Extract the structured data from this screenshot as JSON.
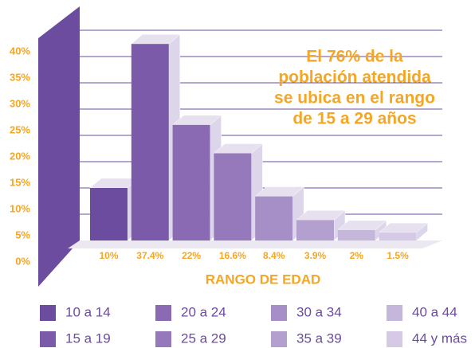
{
  "chart_data": {
    "type": "bar3d",
    "annotation": [
      "El 76% de la",
      "población atendida",
      "se ubica en el rango",
      "de 15 a 29 años"
    ],
    "x_label": "RANGO DE EDAD",
    "categories": [
      "10 a 14",
      "15 a 19",
      "20 a 24",
      "25 a 29",
      "30 a 34",
      "35 a 39",
      "40 a 44",
      "44 y más"
    ],
    "values": [
      10,
      37.4,
      22,
      16.6,
      8.4,
      3.9,
      2,
      1.5
    ],
    "value_labels": [
      "10%",
      "37.4%",
      "22%",
      "16.6%",
      "8.4%",
      "3.9%",
      "2%",
      "1.5%"
    ],
    "colors": [
      "#6b4c9f",
      "#7a5aa9",
      "#8a6bb3",
      "#9679bb",
      "#a68ec6",
      "#b4a0cf",
      "#c5b6dc",
      "#d5c9e6"
    ],
    "ylim": [
      0,
      40
    ],
    "yticks": [
      {
        "value": 0,
        "label": "0%"
      },
      {
        "value": 5,
        "label": "5%"
      },
      {
        "value": 10,
        "label": "10%"
      },
      {
        "value": 15,
        "label": "15%"
      },
      {
        "value": 20,
        "label": "20%"
      },
      {
        "value": 25,
        "label": "25%"
      },
      {
        "value": 30,
        "label": "30%"
      },
      {
        "value": 35,
        "label": "35%"
      },
      {
        "value": 40,
        "label": "40%"
      }
    ],
    "grid": true
  }
}
